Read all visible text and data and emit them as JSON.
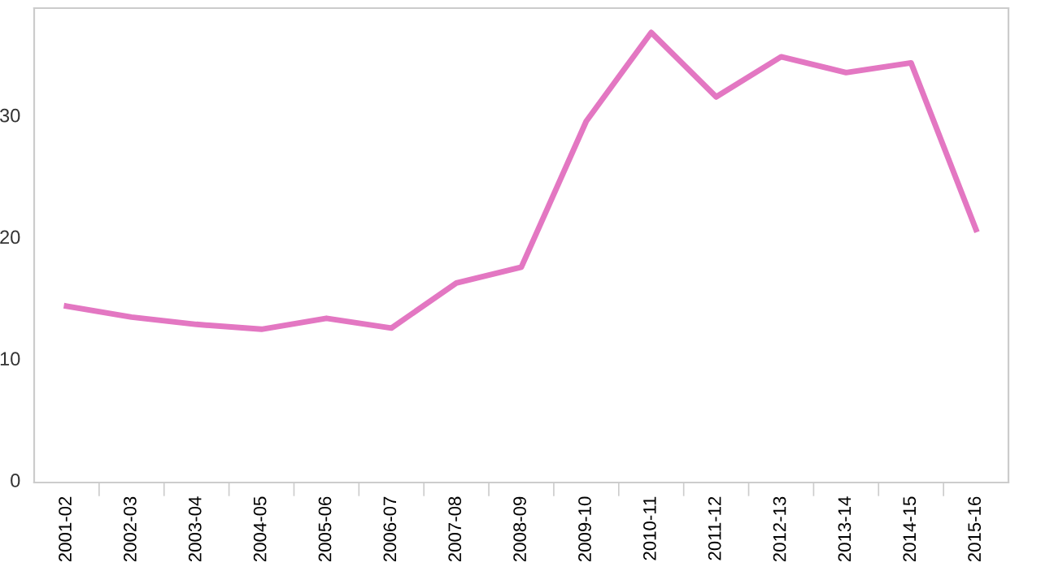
{
  "chart_data": {
    "type": "line",
    "categories": [
      "2001-02",
      "2002-03",
      "2003-04",
      "2004-05",
      "2005-06",
      "2006-07",
      "2007-08",
      "2008-09",
      "2009-10",
      "2010-11",
      "2011-12",
      "2012-13",
      "2013-14",
      "2014-15",
      "2015-16"
    ],
    "series": [
      {
        "color": "#e377c2",
        "values": [
          14.3,
          13.4,
          12.8,
          12.4,
          13.3,
          12.5,
          16.2,
          17.5,
          29.5,
          36.8,
          31.5,
          34.8,
          33.5,
          34.3,
          20.6
        ]
      }
    ],
    "ylim": [
      -0.2,
      38.8
    ],
    "yticks": [
      0,
      10,
      20,
      30
    ],
    "grid": false,
    "legend": false,
    "marker": "none",
    "line_style": "solid"
  }
}
